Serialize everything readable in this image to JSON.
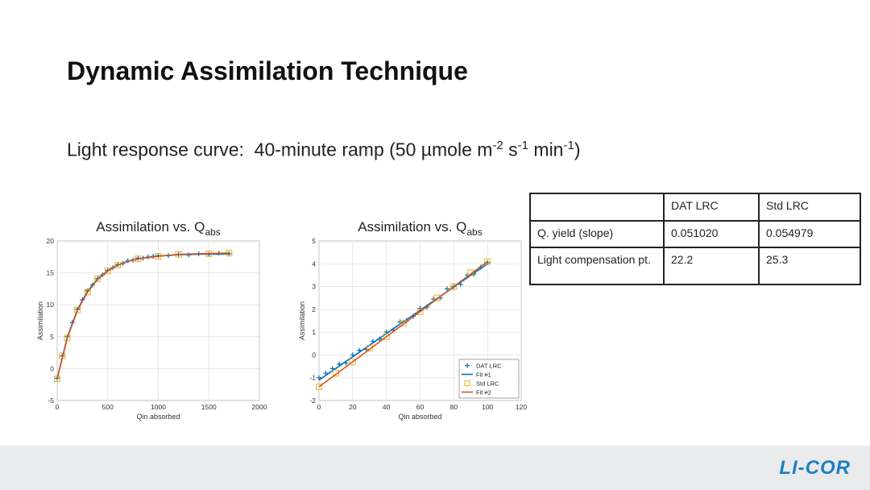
{
  "header": {
    "title": "Dynamic Assimilation Technique"
  },
  "subtitle": [
    "Light response curve:  40-minute ramp (50 µmole m",
    "-2",
    " s",
    "-1",
    " min",
    "-1",
    ")"
  ],
  "chart_data": [
    {
      "type": "scatter",
      "title": [
        "Assimilation vs. Q",
        "abs"
      ],
      "x_label": "Qin absorbed",
      "y_label": "Assimilation",
      "xlim": [
        0,
        2000
      ],
      "xticks": [
        0,
        500,
        1000,
        1500,
        2000
      ],
      "ylim": [
        -5,
        20
      ],
      "yticks": [
        -5,
        0,
        5,
        10,
        15,
        20
      ],
      "grid": true,
      "series": [
        {
          "marker": "plus",
          "color": "#0072bd",
          "x": [
            0,
            50,
            100,
            150,
            200,
            250,
            300,
            350,
            400,
            450,
            500,
            550,
            600,
            650,
            700,
            750,
            800,
            850,
            900,
            950,
            1000,
            1100,
            1200,
            1300,
            1400,
            1500,
            1600,
            1700
          ],
          "values": [
            -1.5,
            2.0,
            5.0,
            7.2,
            9.3,
            10.8,
            12.2,
            13.1,
            14.1,
            14.7,
            15.4,
            15.8,
            16.3,
            16.5,
            16.9,
            17.0,
            17.3,
            17.3,
            17.5,
            17.6,
            17.7,
            17.7,
            17.9,
            17.8,
            18.0,
            17.9,
            18.1,
            18.0
          ]
        },
        {
          "marker": "line",
          "color": "#0072bd",
          "x": [
            0,
            100,
            200,
            300,
            400,
            500,
            600,
            700,
            800,
            1000,
            1200,
            1400,
            1700
          ],
          "values": [
            -1.5,
            4.93,
            9.24,
            12.13,
            14.06,
            15.36,
            16.23,
            16.81,
            17.2,
            17.64,
            17.84,
            17.92,
            17.97
          ]
        },
        {
          "marker": "square",
          "color": "#edb120",
          "x": [
            0,
            50,
            100,
            200,
            300,
            400,
            500,
            600,
            800,
            1000,
            1200,
            1500,
            1700
          ],
          "values": [
            -1.6,
            2.0,
            4.8,
            9.2,
            12.0,
            14.1,
            15.3,
            16.2,
            17.2,
            17.6,
            17.9,
            18.0,
            18.1
          ]
        },
        {
          "marker": "line",
          "color": "#d95319",
          "x": [
            0,
            100,
            200,
            300,
            400,
            500,
            600,
            700,
            800,
            1000,
            1200,
            1400,
            1700
          ],
          "values": [
            -1.6,
            4.8,
            9.1,
            12.0,
            14.0,
            15.3,
            16.2,
            16.8,
            17.2,
            17.6,
            17.9,
            18.0,
            18.1
          ]
        }
      ]
    },
    {
      "type": "scatter",
      "title": [
        "Assimilation vs. Q",
        "abs"
      ],
      "x_label": "Qin absorbed",
      "y_label": "Assimilation",
      "xlim": [
        0,
        120
      ],
      "xticks": [
        0,
        20,
        40,
        60,
        80,
        100,
        120
      ],
      "ylim": [
        -2,
        5
      ],
      "yticks": [
        -2,
        -1,
        0,
        1,
        2,
        3,
        4,
        5
      ],
      "grid": true,
      "legend": "lower right",
      "series": [
        {
          "name": "DAT LRC",
          "marker": "plus",
          "color": "#0072bd",
          "x": [
            0,
            4,
            8,
            12,
            16,
            20,
            24,
            28,
            32,
            36,
            40,
            44,
            48,
            52,
            56,
            60,
            64,
            68,
            72,
            76,
            80,
            84,
            88,
            92,
            96,
            100
          ],
          "values": [
            -1.0,
            -0.8,
            -0.6,
            -0.4,
            -0.35,
            0.0,
            0.2,
            0.25,
            0.6,
            0.7,
            1.0,
            1.1,
            1.45,
            1.5,
            1.7,
            2.05,
            2.1,
            2.45,
            2.5,
            2.9,
            3.0,
            3.1,
            3.5,
            3.55,
            3.85,
            4.05
          ]
        },
        {
          "name": "Fit #1",
          "marker": "line",
          "color": "#0072bd",
          "x": [
            0,
            100
          ],
          "values": [
            -1.1,
            4.0
          ]
        },
        {
          "name": "Std LRC",
          "marker": "square",
          "color": "#edb120",
          "x": [
            0,
            10,
            20,
            30,
            40,
            50,
            60,
            70,
            80,
            90,
            100
          ],
          "values": [
            -1.4,
            -0.8,
            -0.3,
            0.3,
            0.8,
            1.4,
            1.9,
            2.5,
            3.0,
            3.6,
            4.1
          ]
        },
        {
          "name": "Fit #2",
          "marker": "line",
          "color": "#d95319",
          "x": [
            0,
            100
          ],
          "values": [
            -1.4,
            4.1
          ]
        }
      ]
    }
  ],
  "table": {
    "columns": [
      "DAT LRC",
      "Std LRC"
    ],
    "rows": [
      {
        "label": "Q. yield (slope)",
        "values": [
          "0.051020",
          "0.054979"
        ]
      },
      {
        "label": "Light compensation pt.",
        "values": [
          "22.2",
          "25.3"
        ]
      }
    ]
  },
  "footer": {
    "logo": "LI-COR"
  }
}
